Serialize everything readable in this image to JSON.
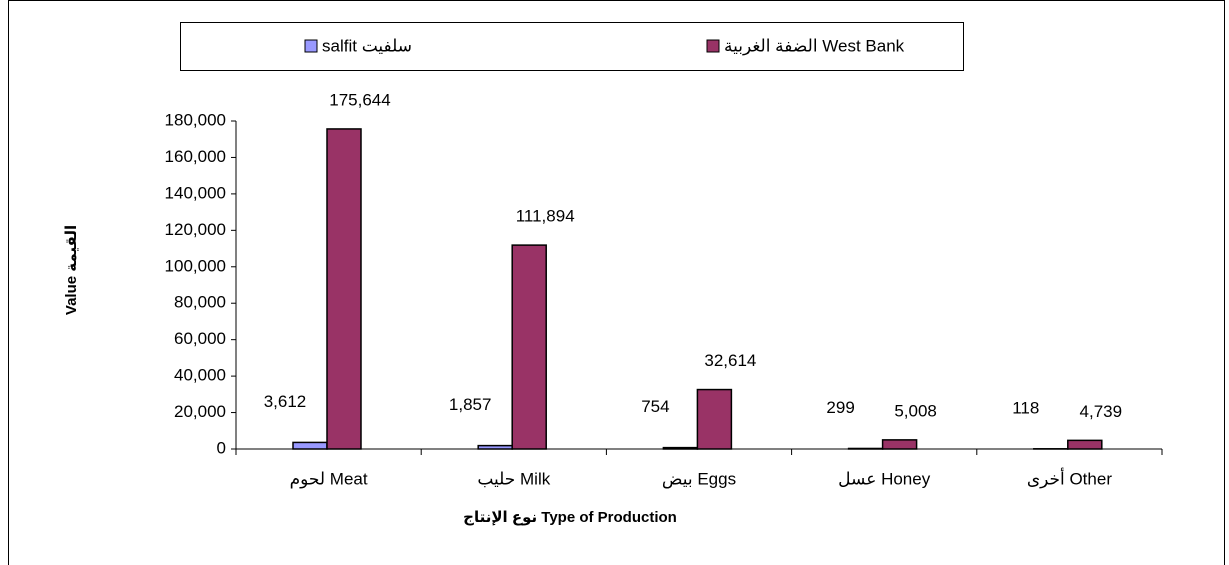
{
  "chart_data": {
    "type": "bar",
    "xlabel": "نوع الإنتاج Type of Production",
    "ylabel": "Value القيمة",
    "categories": [
      "لحوم Meat",
      "حليب Milk",
      "بيض Eggs",
      "عسل Honey",
      "أخرى Other"
    ],
    "series": [
      {
        "name": "salfit سلفيت",
        "color": "#9999ff",
        "values": [
          3612,
          1857,
          754,
          299,
          118
        ],
        "value_labels": [
          "3,612",
          "1,857",
          "754",
          "299",
          "118"
        ]
      },
      {
        "name": "الضفة الغربية West Bank",
        "color": "#993366",
        "values": [
          175644,
          111894,
          32614,
          5008,
          4739
        ],
        "value_labels": [
          "175,644",
          "111,894",
          "32,614",
          "5,008",
          "4,739"
        ]
      }
    ],
    "ylim": [
      0,
      180000
    ],
    "yticks": [
      0,
      {
        "value": 20000,
        "label": "20,000"
      },
      {
        "value": 40000,
        "label": "40,000"
      },
      {
        "value": 60000,
        "label": "60,000"
      },
      {
        "value": 80000,
        "label": "80,000"
      },
      {
        "value": 100000,
        "label": "100,000"
      },
      {
        "value": 120000,
        "label": "120,000"
      },
      {
        "value": 140000,
        "label": "140,000"
      },
      {
        "value": 160000,
        "label": "160,000"
      },
      {
        "value": 180000,
        "label": "180,000"
      }
    ],
    "legend": "top"
  }
}
